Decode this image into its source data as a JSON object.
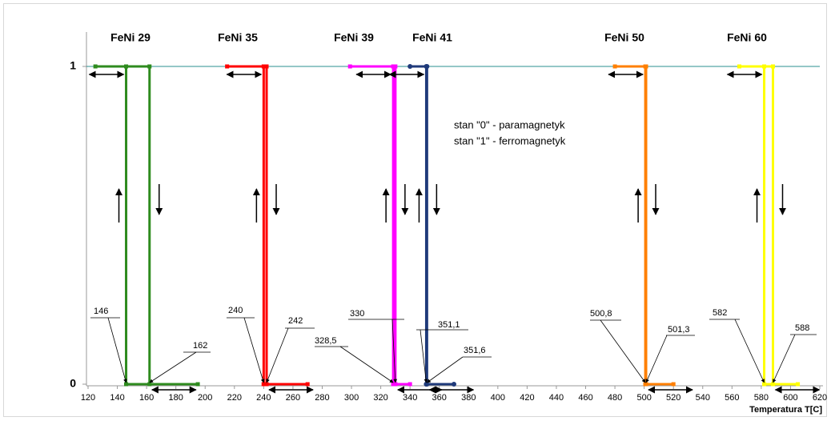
{
  "chart_data": {
    "type": "line",
    "x_label": "Temperatura T[C]",
    "xlim": [
      120,
      620
    ],
    "xticks": [
      120,
      140,
      160,
      180,
      200,
      220,
      240,
      260,
      280,
      300,
      320,
      340,
      360,
      380,
      400,
      420,
      440,
      460,
      480,
      500,
      520,
      540,
      560,
      580,
      600,
      620
    ],
    "ylim": [
      0,
      1
    ],
    "yticks": [
      0,
      1
    ],
    "grid": true,
    "grid_color": "#2a8f8f",
    "annotations": [
      "stan \"0\" - paramagnetyk",
      "stan \"1\" - ferromagnetyk"
    ],
    "series": [
      {
        "name": "FeNi 29",
        "color": "#2e8b1e",
        "marker": "square",
        "x": [
          125,
          162,
          162,
          146,
          146,
          146,
          195
        ],
        "values": [
          1,
          1,
          0,
          0,
          1,
          0,
          0
        ]
      },
      {
        "name": "FeNi 35",
        "color": "#ff0000",
        "marker": "square",
        "x": [
          215,
          242,
          242,
          240,
          240,
          240,
          270
        ],
        "values": [
          1,
          1,
          0,
          0,
          1,
          0,
          0
        ]
      },
      {
        "name": "FeNi 39",
        "color": "#ff00ff",
        "marker": "square",
        "x": [
          299,
          330,
          330,
          328.5,
          328.5,
          328.5,
          340
        ],
        "values": [
          1,
          1,
          0,
          0,
          1,
          0,
          0
        ]
      },
      {
        "name": "FeNi 41",
        "color": "#1f3a7a",
        "marker": "circle",
        "x": [
          340,
          351.6,
          351.6,
          351.1,
          351.1,
          351.1,
          370
        ],
        "values": [
          1,
          1,
          0,
          0,
          1,
          0,
          0
        ]
      },
      {
        "name": "FeNi 50",
        "color": "#ff7f00",
        "marker": "square",
        "x": [
          480,
          501.3,
          501.3,
          500.8,
          500.8,
          500.8,
          520
        ],
        "values": [
          1,
          1,
          0,
          0,
          1,
          0,
          0
        ]
      },
      {
        "name": "FeNi 60",
        "color": "#ffff00",
        "marker": "square",
        "x": [
          565,
          588,
          588,
          582,
          582,
          582,
          605
        ],
        "values": [
          1,
          1,
          0,
          0,
          1,
          0,
          0
        ]
      }
    ],
    "point_labels": [
      146,
      162,
      240,
      242,
      {
        "value": 328.5,
        "label": "328,5"
      },
      330,
      {
        "value": 351.1,
        "label": "351,1"
      },
      {
        "value": 351.6,
        "label": "351,6"
      },
      {
        "value": 500.8,
        "label": "500,8"
      },
      {
        "value": 501.3,
        "label": "501,3"
      },
      582,
      588
    ]
  }
}
